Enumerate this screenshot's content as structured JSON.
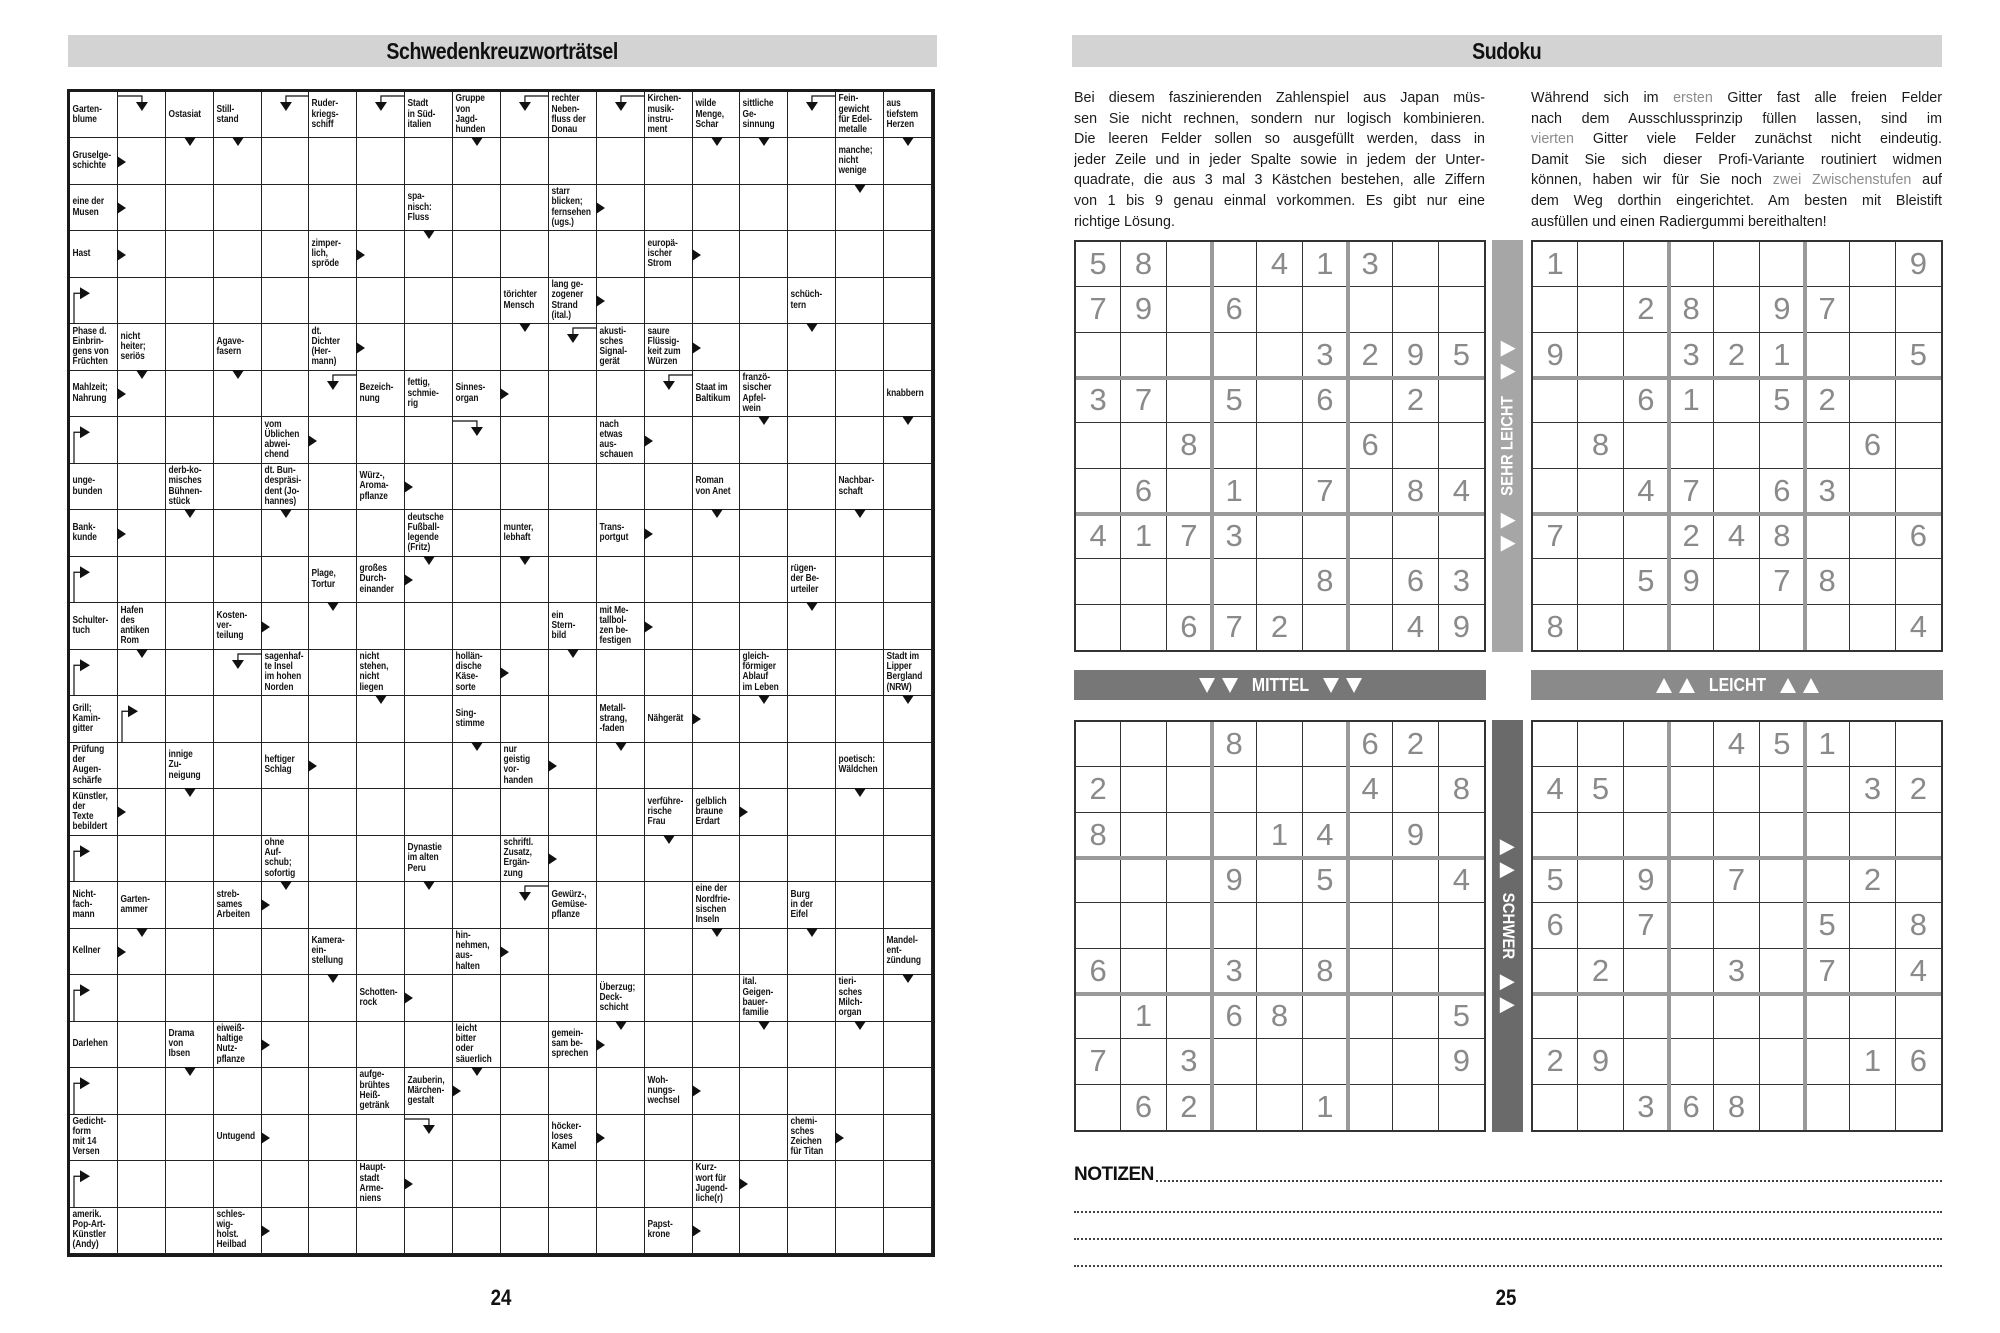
{
  "crossword": {
    "title": "Schwedenkreuzworträtsel",
    "page_number": "24",
    "rows": 25,
    "cols": 18,
    "clues": [
      {
        "r": 0,
        "c": 0,
        "text": "Garten-\nblume",
        "arrow": ""
      },
      {
        "r": 0,
        "c": 2,
        "text": "Ostasiat",
        "arrow": "down"
      },
      {
        "r": 0,
        "c": 3,
        "text": "Still-\nstand",
        "arrow": "down"
      },
      {
        "r": 0,
        "c": 5,
        "text": "Ruder-\nkriegs-\nschiff",
        "arrow": ""
      },
      {
        "r": 0,
        "c": 7,
        "text": "Stadt\nin Süd-\nitalien",
        "arrow": ""
      },
      {
        "r": 0,
        "c": 8,
        "text": "Gruppe\nvon\nJagd-\nhunden",
        "arrow": "down"
      },
      {
        "r": 0,
        "c": 10,
        "text": "rechter\nNeben-\nfluss der\nDonau",
        "arrow": ""
      },
      {
        "r": 0,
        "c": 12,
        "text": "Kirchen-\nmusik-\ninstru-\nment",
        "arrow": ""
      },
      {
        "r": 0,
        "c": 13,
        "text": "wilde\nMenge,\nSchar",
        "arrow": "down"
      },
      {
        "r": 0,
        "c": 14,
        "text": "sittliche\nGe-\nsinnung",
        "arrow": "down"
      },
      {
        "r": 0,
        "c": 16,
        "text": "Fein-\ngewicht\nfür Edel-\nmetalle",
        "arrow": ""
      },
      {
        "r": 0,
        "c": 17,
        "text": "aus\ntiefstem\nHerzen",
        "arrow": "down"
      },
      {
        "r": 1,
        "c": 0,
        "text": "Gruselge-\nschichte",
        "arrow": "right"
      },
      {
        "r": 1,
        "c": 16,
        "text": "manche;\nnicht\nwenige",
        "arrow": "down"
      },
      {
        "r": 2,
        "c": 0,
        "text": "eine der\nMusen",
        "arrow": "right"
      },
      {
        "r": 2,
        "c": 7,
        "text": "spa-\nnisch:\nFluss",
        "arrow": "down"
      },
      {
        "r": 2,
        "c": 10,
        "text": "starr\nblicken;\nfernsehen\n(ugs.)",
        "arrow": "right"
      },
      {
        "r": 3,
        "c": 0,
        "text": "Hast",
        "arrow": "right"
      },
      {
        "r": 3,
        "c": 5,
        "text": "zimper-\nlich,\nspröde",
        "arrow": "right"
      },
      {
        "r": 3,
        "c": 12,
        "text": "europä-\nischer\nStrom",
        "arrow": "right"
      },
      {
        "r": 4,
        "c": 9,
        "text": "törichter\nMensch",
        "arrow": "down"
      },
      {
        "r": 4,
        "c": 10,
        "text": "lang ge-\nzogener\nStrand\n(ital.)",
        "arrow": "right"
      },
      {
        "r": 4,
        "c": 15,
        "text": "schüch-\ntern",
        "arrow": "down"
      },
      {
        "r": 5,
        "c": 0,
        "text": "Phase d.\nEinbrin-\ngens von\nFrüchten",
        "arrow": ""
      },
      {
        "r": 5,
        "c": 1,
        "text": "nicht\nheiter;\nseriös",
        "arrow": "down"
      },
      {
        "r": 5,
        "c": 3,
        "text": "Agave-\nfasern",
        "arrow": "down"
      },
      {
        "r": 5,
        "c": 5,
        "text": "dt.\nDichter\n(Her-\nmann)",
        "arrow": "right"
      },
      {
        "r": 5,
        "c": 11,
        "text": "akusti-\nsches\nSignal-\ngerät",
        "arrow": ""
      },
      {
        "r": 5,
        "c": 12,
        "text": "saure\nFlüssig-\nkeit zum\nWürzen",
        "arrow": "right"
      },
      {
        "r": 6,
        "c": 0,
        "text": "Mahlzeit;\nNahrung",
        "arrow": "right"
      },
      {
        "r": 6,
        "c": 6,
        "text": "Bezeich-\nnung",
        "arrow": ""
      },
      {
        "r": 6,
        "c": 7,
        "text": "fettig,\nschmie-\nrig",
        "arrow": ""
      },
      {
        "r": 6,
        "c": 8,
        "text": "Sinnes-\norgan",
        "arrow": "right"
      },
      {
        "r": 6,
        "c": 13,
        "text": "Staat im\nBaltikum",
        "arrow": ""
      },
      {
        "r": 6,
        "c": 14,
        "text": "franzö-\nsischer\nApfel-\nwein",
        "arrow": "down"
      },
      {
        "r": 6,
        "c": 17,
        "text": "knabbern",
        "arrow": "down"
      },
      {
        "r": 7,
        "c": 4,
        "text": "vom\nÜblichen\nabwei-\nchend",
        "arrow": "right"
      },
      {
        "r": 7,
        "c": 11,
        "text": "nach\netwas\naus-\nschauen",
        "arrow": "right"
      },
      {
        "r": 8,
        "c": 0,
        "text": "unge-\nbunden",
        "arrow": ""
      },
      {
        "r": 8,
        "c": 2,
        "text": "derb-ko-\nmisches\nBühnen-\nstück",
        "arrow": "down"
      },
      {
        "r": 8,
        "c": 4,
        "text": "dt. Bun-\ndespräsi-\ndent (Jo-\nhannes)",
        "arrow": "down"
      },
      {
        "r": 8,
        "c": 6,
        "text": "Würz-,\nAroma-\npflanze",
        "arrow": "right"
      },
      {
        "r": 8,
        "c": 13,
        "text": "Roman\nvon Anet",
        "arrow": "down"
      },
      {
        "r": 8,
        "c": 16,
        "text": "Nachbar-\nschaft",
        "arrow": "down"
      },
      {
        "r": 9,
        "c": 0,
        "text": "Bank-\nkunde",
        "arrow": "right"
      },
      {
        "r": 9,
        "c": 7,
        "text": "deutsche\nFußball-\nlegende\n(Fritz)",
        "arrow": "down"
      },
      {
        "r": 9,
        "c": 9,
        "text": "munter,\nlebhaft",
        "arrow": "down"
      },
      {
        "r": 9,
        "c": 11,
        "text": "Trans-\nportgut",
        "arrow": "right"
      },
      {
        "r": 10,
        "c": 5,
        "text": "Plage,\nTortur",
        "arrow": "down"
      },
      {
        "r": 10,
        "c": 6,
        "text": "großes\nDurch-\neinander",
        "arrow": "right"
      },
      {
        "r": 10,
        "c": 15,
        "text": "rügen-\nder Be-\nurteiler",
        "arrow": "down"
      },
      {
        "r": 11,
        "c": 0,
        "text": "Schulter-\ntuch",
        "arrow": ""
      },
      {
        "r": 11,
        "c": 1,
        "text": "Hafen\ndes\nantiken\nRom",
        "arrow": "down"
      },
      {
        "r": 11,
        "c": 3,
        "text": "Kosten-\nver-\nteilung",
        "arrow": "right"
      },
      {
        "r": 11,
        "c": 10,
        "text": "ein\nStern-\nbild",
        "arrow": "down"
      },
      {
        "r": 11,
        "c": 11,
        "text": "mit Me-\ntallbol-\nzen be-\nfestigen",
        "arrow": "right"
      },
      {
        "r": 12,
        "c": 4,
        "text": "sagenhaf-\nte Insel\nim hohen\nNorden",
        "arrow": ""
      },
      {
        "r": 12,
        "c": 6,
        "text": "nicht\nstehen,\nnicht\nliegen",
        "arrow": "down"
      },
      {
        "r": 12,
        "c": 8,
        "text": "hollän-\ndische\nKäse-\nsorte",
        "arrow": "right"
      },
      {
        "r": 12,
        "c": 14,
        "text": "gleich-\nförmiger\nAblauf\nim Leben",
        "arrow": "down"
      },
      {
        "r": 12,
        "c": 17,
        "text": "Stadt im\nLipper\nBergland\n(NRW)",
        "arrow": "down"
      },
      {
        "r": 13,
        "c": 0,
        "text": "Grill;\nKamin-\ngitter",
        "arrow": ""
      },
      {
        "r": 13,
        "c": 8,
        "text": "Sing-\nstimme",
        "arrow": "down"
      },
      {
        "r": 13,
        "c": 11,
        "text": "Metall-\nstrang,\n-faden",
        "arrow": "down"
      },
      {
        "r": 13,
        "c": 12,
        "text": "Nähgerät",
        "arrow": "right"
      },
      {
        "r": 14,
        "c": 0,
        "text": "Prüfung\nder\nAugen-\nschärfe",
        "arrow": ""
      },
      {
        "r": 14,
        "c": 2,
        "text": "innige\nZu-\nneigung",
        "arrow": "down"
      },
      {
        "r": 14,
        "c": 4,
        "text": "heftiger\nSchlag",
        "arrow": "right"
      },
      {
        "r": 14,
        "c": 9,
        "text": "nur\ngeistig\nvor-\nhanden",
        "arrow": "right"
      },
      {
        "r": 14,
        "c": 16,
        "text": "poetisch:\nWäldchen",
        "arrow": "down"
      },
      {
        "r": 15,
        "c": 0,
        "text": "Künstler,\nder\nTexte\nbebildert",
        "arrow": "right"
      },
      {
        "r": 15,
        "c": 12,
        "text": "verführe-\nrische\nFrau",
        "arrow": "down"
      },
      {
        "r": 15,
        "c": 13,
        "text": "gelblich\nbraune\nErdart",
        "arrow": "right"
      },
      {
        "r": 16,
        "c": 4,
        "text": "ohne\nAuf-\nschub;\nsofortig",
        "arrow": "down"
      },
      {
        "r": 16,
        "c": 7,
        "text": "Dynastie\nim alten\nPeru",
        "arrow": "down"
      },
      {
        "r": 16,
        "c": 9,
        "text": "schriftl.\nZusatz,\nErgän-\nzung",
        "arrow": "right"
      },
      {
        "r": 17,
        "c": 0,
        "text": "Nicht-\nfach-\nmann",
        "arrow": ""
      },
      {
        "r": 17,
        "c": 1,
        "text": "Garten-\nammer",
        "arrow": "down"
      },
      {
        "r": 17,
        "c": 3,
        "text": "streb-\nsames\nArbeiten",
        "arrow": "right"
      },
      {
        "r": 17,
        "c": 10,
        "text": "Gewürz-,\nGemüse-\npflanze",
        "arrow": ""
      },
      {
        "r": 17,
        "c": 13,
        "text": "eine der\nNordfrie-\nsischen\nInseln",
        "arrow": "down"
      },
      {
        "r": 17,
        "c": 15,
        "text": "Burg\nin der\nEifel",
        "arrow": "down"
      },
      {
        "r": 18,
        "c": 0,
        "text": "Kellner",
        "arrow": "right"
      },
      {
        "r": 18,
        "c": 5,
        "text": "Kamera-\nein-\nstellung",
        "arrow": "down"
      },
      {
        "r": 18,
        "c": 8,
        "text": "hin-\nnehmen,\naus-\nhalten",
        "arrow": "right"
      },
      {
        "r": 18,
        "c": 17,
        "text": "Mandel-\nent-\nzündung",
        "arrow": "down"
      },
      {
        "r": 19,
        "c": 6,
        "text": "Schotten-\nrock",
        "arrow": "right"
      },
      {
        "r": 19,
        "c": 11,
        "text": "Überzug;\nDeck-\nschicht",
        "arrow": "down"
      },
      {
        "r": 19,
        "c": 14,
        "text": "ital.\nGeigen-\nbauer-\nfamilie",
        "arrow": "down"
      },
      {
        "r": 19,
        "c": 16,
        "text": "tieri-\nsches\nMilch-\norgan",
        "arrow": "down"
      },
      {
        "r": 20,
        "c": 0,
        "text": "Darlehen",
        "arrow": ""
      },
      {
        "r": 20,
        "c": 2,
        "text": "Drama\nvon\nIbsen",
        "arrow": "down"
      },
      {
        "r": 20,
        "c": 3,
        "text": "eiweiß-\nhaltige\nNutz-\npflanze",
        "arrow": "right"
      },
      {
        "r": 20,
        "c": 8,
        "text": "leicht\nbitter\noder\nsäuerlich",
        "arrow": "down"
      },
      {
        "r": 20,
        "c": 10,
        "text": "gemein-\nsam be-\nsprechen",
        "arrow": "right"
      },
      {
        "r": 21,
        "c": 6,
        "text": "aufge-\nbrühtes\nHeiß-\ngetränk",
        "arrow": ""
      },
      {
        "r": 21,
        "c": 7,
        "text": "Zauberin,\nMärchen-\ngestalt",
        "arrow": "right"
      },
      {
        "r": 21,
        "c": 12,
        "text": "Woh-\nnungs-\nwechsel",
        "arrow": "right"
      },
      {
        "r": 22,
        "c": 0,
        "text": "Gedicht-\nform\nmit 14\nVersen",
        "arrow": ""
      },
      {
        "r": 22,
        "c": 3,
        "text": "Untugend",
        "arrow": "right"
      },
      {
        "r": 22,
        "c": 10,
        "text": "höcker-\nloses\nKamel",
        "arrow": "right"
      },
      {
        "r": 22,
        "c": 15,
        "text": "chemi-\nsches\nZeichen\nfür Titan",
        "arrow": "right"
      },
      {
        "r": 23,
        "c": 6,
        "text": "Haupt-\nstadt\nArme-\nniens",
        "arrow": "right"
      },
      {
        "r": 23,
        "c": 13,
        "text": "Kurz-\nwort für\nJugend-\nliche(r)",
        "arrow": "right"
      },
      {
        "r": 24,
        "c": 0,
        "text": "amerik.\nPop-Art-\nKünstler\n(Andy)",
        "arrow": ""
      },
      {
        "r": 24,
        "c": 3,
        "text": "schles-\nwig-\nholst.\nHeilbad",
        "arrow": "right"
      },
      {
        "r": 24,
        "c": 12,
        "text": "Papst-\nkrone",
        "arrow": "right"
      }
    ],
    "marks": [
      {
        "r": 0,
        "c": 1,
        "type": "from-left"
      },
      {
        "r": 0,
        "c": 4,
        "type": "from-right"
      },
      {
        "r": 0,
        "c": 6,
        "type": "from-right"
      },
      {
        "r": 0,
        "c": 9,
        "type": "from-right"
      },
      {
        "r": 0,
        "c": 11,
        "type": "from-right"
      },
      {
        "r": 0,
        "c": 15,
        "type": "from-right"
      },
      {
        "r": 4,
        "c": 0,
        "type": "from-below"
      },
      {
        "r": 5,
        "c": 10,
        "type": "from-right"
      },
      {
        "r": 6,
        "c": 5,
        "type": "from-right"
      },
      {
        "r": 6,
        "c": 12,
        "type": "from-right"
      },
      {
        "r": 7,
        "c": 0,
        "type": "from-below"
      },
      {
        "r": 7,
        "c": 8,
        "type": "from-left"
      },
      {
        "r": 10,
        "c": 0,
        "type": "from-below"
      },
      {
        "r": 12,
        "c": 0,
        "type": "from-below"
      },
      {
        "r": 12,
        "c": 3,
        "type": "from-right"
      },
      {
        "r": 13,
        "c": 1,
        "type": "from-below"
      },
      {
        "r": 16,
        "c": 0,
        "type": "from-below"
      },
      {
        "r": 17,
        "c": 9,
        "type": "from-right"
      },
      {
        "r": 19,
        "c": 0,
        "type": "from-below"
      },
      {
        "r": 21,
        "c": 0,
        "type": "from-below"
      },
      {
        "r": 22,
        "c": 7,
        "type": "from-left"
      },
      {
        "r": 23,
        "c": 0,
        "type": "from-below"
      }
    ]
  },
  "sudoku": {
    "title": "Sudoku",
    "page_number": "25",
    "intro_left": [
      "Bei diesem faszinierenden Zahlenspiel aus Japan müs-",
      "sen Sie nicht rechnen, sondern nur logisch kombinieren.",
      "Die leeren Felder sollen so ausgefüllt werden, dass in",
      "jeder Zeile und in jeder Spalte sowie in jedem der Unter-",
      "quadrate, die aus 3 mal 3 Kästchen bestehen, alle Ziffern",
      "von 1 bis 9 genau einmal vorkommen. Es gibt nur eine",
      "richtige Lösung."
    ],
    "intro_right": [
      [
        {
          "t": "Während sich im "
        },
        {
          "t": "ersten",
          "hl": true
        },
        {
          "t": " Gitter fast alle freien Felder"
        }
      ],
      [
        {
          "t": "nach dem Ausschlussprinzip füllen lassen, sind im"
        }
      ],
      [
        {
          "t": "vierten",
          "hl": true
        },
        {
          "t": " Gitter viele Felder zunächst nicht eindeutig."
        }
      ],
      [
        {
          "t": "Damit Sie sich dieser Profi-Variante routiniert widmen"
        }
      ],
      [
        {
          "t": "können, haben wir für Sie noch "
        },
        {
          "t": "zwei Zwischenstufen",
          "hl": true
        },
        {
          "t": " auf"
        }
      ],
      [
        {
          "t": "dem Weg dorthin eingerichtet. Am besten mit Bleistift"
        }
      ],
      [
        {
          "t": "ausfüllen und einen Radiergummi bereithalten!"
        }
      ]
    ],
    "highlight_color": "#8c8c8c",
    "digit_color": "#8a8a8a",
    "difficulty_labels": {
      "very_easy": "SEHR LEICHT",
      "medium": "MITTEL",
      "easy": "LEICHT",
      "hard": "SCHWER"
    },
    "difficulty_colors": {
      "very_easy": "#a6a6a6",
      "medium": "#777777",
      "easy": "#8a8a8a",
      "hard": "#6a6a6a"
    },
    "grids": [
      {
        "name": "top-left",
        "rows": [
          "58..413..",
          "79.6.....",
          ".....3295",
          "37.5.6.2.",
          "..8...6..",
          ".6.1.7.84",
          "4173.....",
          ".....8.63",
          "..672..49"
        ]
      },
      {
        "name": "top-right",
        "rows": [
          "1.......9",
          "..28.97..",
          "9..321..5",
          "..61.52..",
          ".8.....6.",
          "..47.63..",
          "7..248..6",
          "..59.78..",
          "8.......4"
        ]
      },
      {
        "name": "bottom-left",
        "rows": [
          "...8..62.",
          "2.....4.8",
          "8...14.9.",
          "...9.5..4",
          ".........",
          "6..3.8...",
          ".1.68...5",
          "7.3.....9",
          ".62..1..."
        ]
      },
      {
        "name": "bottom-right",
        "rows": [
          "....451..",
          "45.....32",
          ".........",
          "5.9.7..2.",
          "6.7...5.8",
          ".2..3.7.4",
          ".........",
          "29.....16",
          "..368...."
        ]
      }
    ],
    "notes_label": "NOTIZEN"
  }
}
